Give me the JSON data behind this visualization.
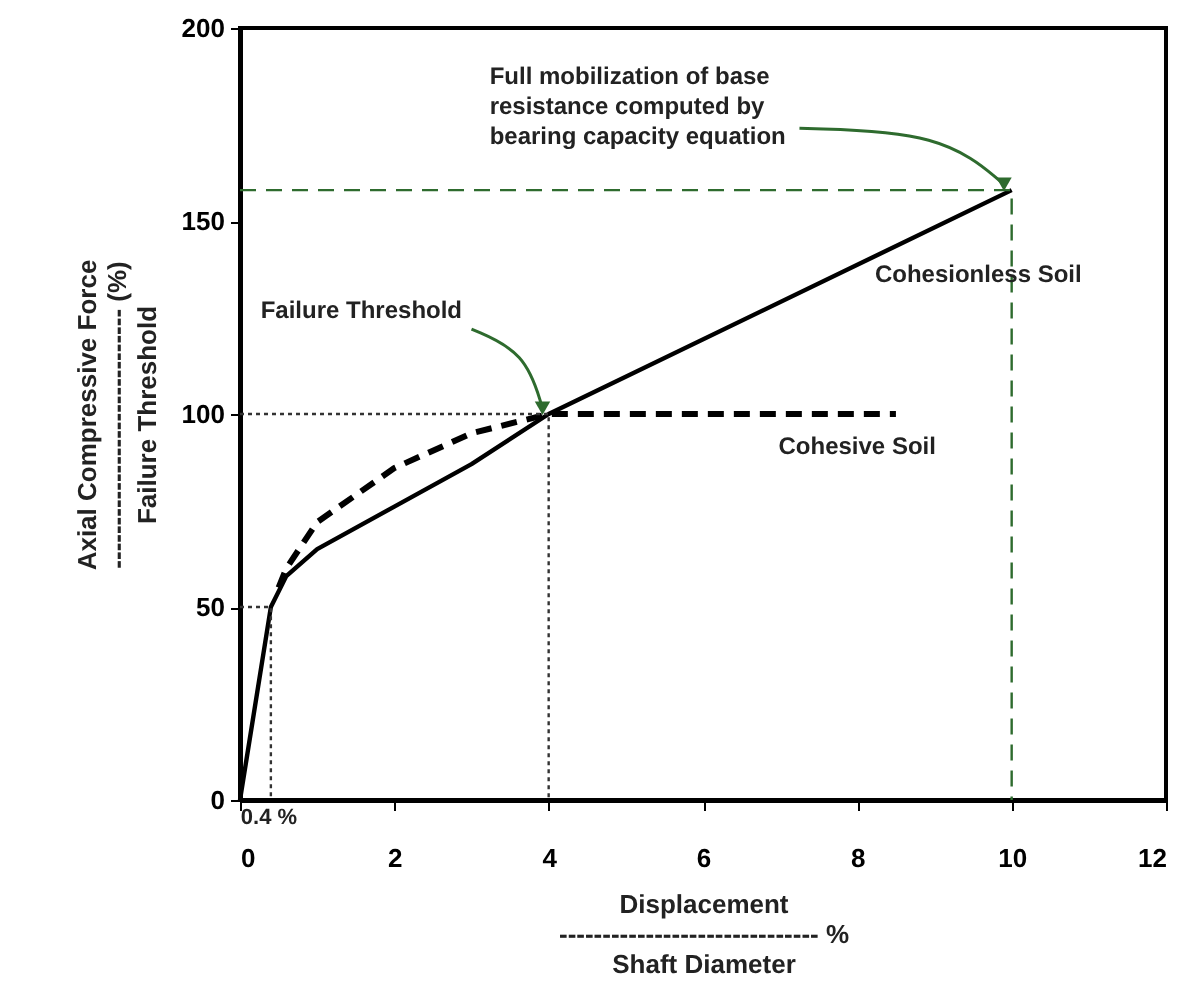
{
  "chart_data": {
    "type": "line",
    "xlabel": "Displacement\n------------------------------ %\nShaft Diameter",
    "ylabel": "Axial Compressive Force\n------------------------------ (%)\nFailure Threshold",
    "xlim": [
      0,
      12
    ],
    "xticks": [
      0,
      2,
      4,
      6,
      8,
      10,
      12
    ],
    "ylim": [
      0,
      200
    ],
    "yticks": [
      0,
      50,
      100,
      150,
      200
    ],
    "grid": false,
    "marker": "none",
    "series": [
      {
        "name": "Cohesionless Soil",
        "color": "#000000",
        "line_style": "solid",
        "x": [
          0,
          0.4,
          0.6,
          1,
          2,
          3,
          4,
          10
        ],
        "values": [
          0,
          50,
          58,
          65,
          76,
          87,
          100,
          158
        ]
      },
      {
        "name": "Cohesive Soil",
        "color": "#000000",
        "line_style": "dashed",
        "x": [
          0.5,
          0.6,
          1,
          2,
          3,
          4,
          8.5
        ],
        "values": [
          55,
          60,
          72,
          86,
          95,
          100,
          100
        ]
      },
      {
        "color": "#333333",
        "line_style": "dotted",
        "x": [
          0,
          0.4,
          0.4
        ],
        "values": [
          50,
          50,
          0
        ]
      },
      {
        "color": "#333333",
        "line_style": "dotted",
        "x": [
          0,
          4,
          4
        ],
        "values": [
          100,
          100,
          0
        ]
      },
      {
        "color": "#2e6b2e",
        "line_style": "dashed",
        "x": [
          0,
          10,
          10
        ],
        "values": [
          158,
          158,
          0
        ]
      }
    ],
    "annotations": [
      {
        "text": "Full mobilization of base\nresistance computed by\nbearing capacity equation",
        "x": 10,
        "y": 158
      },
      {
        "text": "Failure Threshold",
        "x": 4,
        "y": 100
      },
      {
        "text": "0.4 %",
        "x": 0.4,
        "y": 0
      }
    ]
  }
}
